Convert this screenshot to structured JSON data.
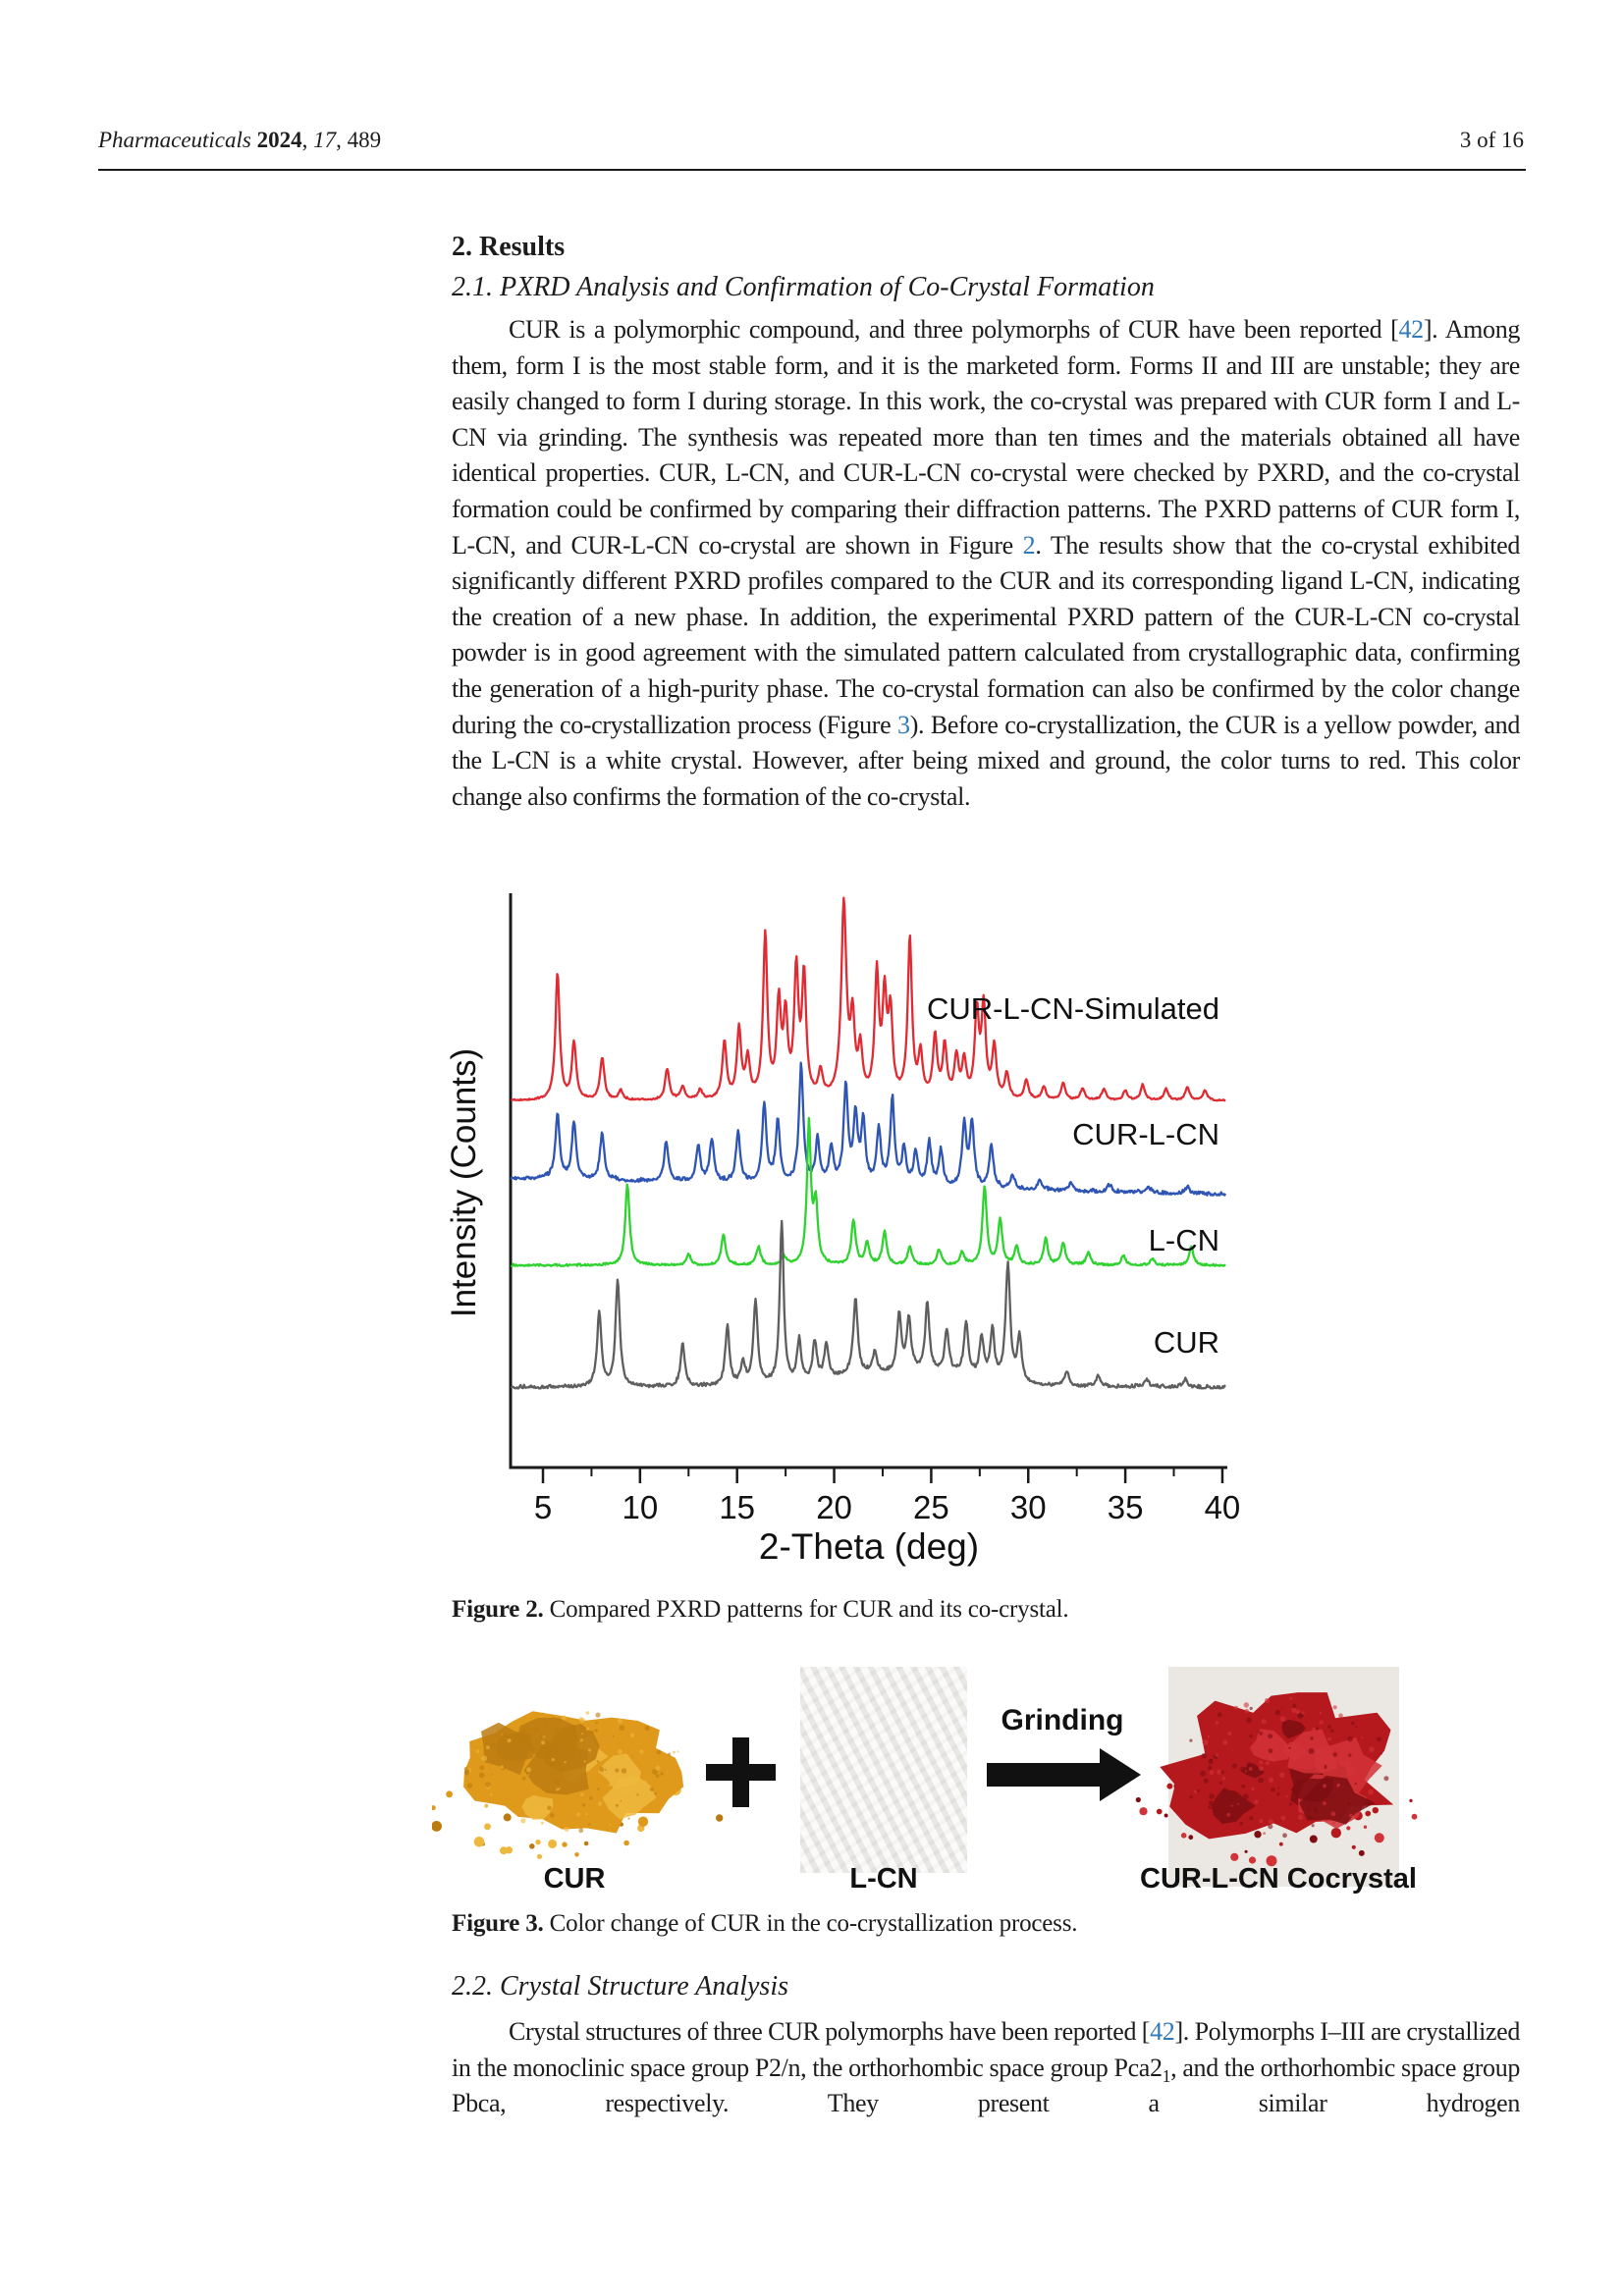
{
  "header": {
    "citation_segments": [
      {
        "t": "Pharmaceuticals",
        "style": "i"
      },
      {
        "t": " "
      },
      {
        "t": "2024",
        "style": "b"
      },
      {
        "t": ", "
      },
      {
        "t": "17",
        "style": "i"
      },
      {
        "t": ", 489"
      }
    ],
    "page_indicator": "3 of 16"
  },
  "sections": {
    "results_heading": "2. Results",
    "s21_heading": "2.1. PXRD Analysis and Confirmation of Co-Crystal Formation",
    "p1_segments": [
      {
        "t": "CUR is a polymorphic compound, and three polymorphs of CUR have been reported ["
      },
      {
        "t": "42",
        "link": true,
        "name": "ref-42-link"
      },
      {
        "t": "]. Among them, form I is the most stable form, and it is the marketed form. Forms II and III are unstable; they are easily changed to form I during storage. In this work, the co-crystal was prepared with CUR form I and L-CN via grinding. The synthesis was repeated more than ten times and the materials obtained all have identical properties. CUR, L-CN, and CUR-L-CN co-crystal were checked by PXRD, and the co-crystal formation could be confirmed by comparing their diffraction patterns. The PXRD patterns of CUR form I, L-CN, and CUR-L-CN co-crystal are shown in Figure "
      },
      {
        "t": "2",
        "link": true,
        "name": "figure-2-ref-link"
      },
      {
        "t": ". The results show that the co-crystal exhibited significantly different PXRD profiles compared to the CUR and its corresponding ligand L-CN, indicating the creation of a new phase. In addition, the experimental PXRD pattern of the CUR-L-CN co-crystal powder is in good agreement with the simulated pattern calculated from crystallographic data, confirming the generation of a high-purity phase. The co-crystal formation can also be confirmed by the color change during the co-crystallization process (Figure "
      },
      {
        "t": "3",
        "link": true,
        "name": "figure-3-ref-link"
      },
      {
        "t": "). Before co-crystallization, the CUR is a yellow powder, and the L-CN is a white crystal. However, after being mixed and ground, the color turns to red. This color change also confirms the formation of the co-crystal."
      }
    ],
    "s22_heading": "2.2. Crystal Structure Analysis",
    "p2_segments": [
      {
        "t": "Crystal structures of three CUR polymorphs have been reported ["
      },
      {
        "t": "42",
        "link": true,
        "name": "ref-42-link-2"
      },
      {
        "t": "]. Polymorphs I–III are crystallized in the monoclinic space group P2/n, the orthorhombic space group Pca2"
      },
      {
        "t": "1",
        "style": "sub"
      },
      {
        "t": ", and the orthorhombic space group Pbca, respectively. They present a similar hydrogen"
      }
    ]
  },
  "figure2": {
    "caption_label": "Figure 2.",
    "caption_text": " Compared PXRD patterns for CUR and its co-crystal."
  },
  "figure3": {
    "caption_label": "Figure 3.",
    "caption_text": " Color change of CUR in the co-crystallization process.",
    "plus_symbol": "+",
    "arrow_label": "Grinding",
    "items": [
      {
        "label": "CUR",
        "type": "yellow-powder",
        "palette": {
          "base": "#df9a1b",
          "dark": "#bc7b0f",
          "light": "#eeb83e"
        }
      },
      {
        "label": "L-CN",
        "type": "white-crystal",
        "palette": {
          "base": "#f2f1ef",
          "dark": "#dddbd6",
          "light": "#fbfbfa"
        }
      },
      {
        "label": "CUR-L-CN Cocrystal",
        "type": "red-powder",
        "palette": {
          "base": "#b5181d",
          "dark": "#7e0e12",
          "light": "#d23338"
        }
      }
    ]
  },
  "chart_data": {
    "type": "line",
    "title": "",
    "xlabel": "2-Theta (deg)",
    "ylabel": "Intensity (Counts)",
    "xlim": [
      3.35,
      40.2
    ],
    "x_ticks": [
      5,
      10,
      15,
      20,
      25,
      30,
      35,
      40
    ],
    "x_minor_tick_step": 2.5,
    "ylim_note": "arbitrary stacked intensity, no y ticks",
    "grid": false,
    "legend_position": "labels-right-of-each-trace",
    "series": [
      {
        "name": "CUR-L-CN-Simulated",
        "color": "#e02b33",
        "peaks": [
          [
            5.75,
            0.66
          ],
          [
            6.6,
            0.3
          ],
          [
            8.05,
            0.22
          ],
          [
            9.0,
            0.05
          ],
          [
            11.4,
            0.16
          ],
          [
            12.2,
            0.07
          ],
          [
            13.1,
            0.05
          ],
          [
            14.35,
            0.3
          ],
          [
            15.1,
            0.36
          ],
          [
            15.55,
            0.2
          ],
          [
            16.45,
            0.85
          ],
          [
            17.15,
            0.48
          ],
          [
            17.5,
            0.4
          ],
          [
            18.05,
            0.65
          ],
          [
            18.45,
            0.62
          ],
          [
            19.3,
            0.13
          ],
          [
            20.5,
            1.0,
            0.16
          ],
          [
            20.95,
            0.38
          ],
          [
            21.35,
            0.24
          ],
          [
            22.2,
            0.63
          ],
          [
            22.6,
            0.5
          ],
          [
            22.9,
            0.42
          ],
          [
            23.9,
            0.83
          ],
          [
            24.45,
            0.22
          ],
          [
            25.2,
            0.32
          ],
          [
            25.7,
            0.27
          ],
          [
            26.3,
            0.21
          ],
          [
            26.7,
            0.19
          ],
          [
            27.35,
            0.44
          ],
          [
            27.7,
            0.47
          ],
          [
            28.25,
            0.27
          ],
          [
            28.9,
            0.13
          ],
          [
            29.9,
            0.1
          ],
          [
            30.8,
            0.07
          ],
          [
            31.8,
            0.09
          ],
          [
            32.8,
            0.06
          ],
          [
            33.9,
            0.06
          ],
          [
            35.0,
            0.05
          ],
          [
            35.9,
            0.08
          ],
          [
            37.1,
            0.06
          ],
          [
            38.2,
            0.07
          ],
          [
            39.1,
            0.05
          ]
        ]
      },
      {
        "name": "CUR-L-CN",
        "color": "#2f55b4",
        "peaks": [
          [
            5.75,
            0.55
          ],
          [
            6.6,
            0.48
          ],
          [
            8.05,
            0.4
          ],
          [
            11.35,
            0.34
          ],
          [
            13.0,
            0.3
          ],
          [
            13.7,
            0.36
          ],
          [
            15.05,
            0.42
          ],
          [
            16.4,
            0.66
          ],
          [
            17.1,
            0.52
          ],
          [
            18.3,
            1.0
          ],
          [
            19.15,
            0.36
          ],
          [
            19.85,
            0.3
          ],
          [
            20.6,
            0.8
          ],
          [
            21.1,
            0.56
          ],
          [
            21.5,
            0.5
          ],
          [
            22.3,
            0.46
          ],
          [
            23.0,
            0.72
          ],
          [
            23.6,
            0.3
          ],
          [
            24.2,
            0.28
          ],
          [
            24.9,
            0.36
          ],
          [
            25.5,
            0.3
          ],
          [
            26.7,
            0.52
          ],
          [
            27.1,
            0.54
          ],
          [
            28.1,
            0.36
          ],
          [
            29.2,
            0.12
          ],
          [
            30.6,
            0.09
          ],
          [
            32.2,
            0.07
          ],
          [
            34.2,
            0.06
          ],
          [
            36.2,
            0.05
          ],
          [
            38.2,
            0.06
          ]
        ]
      },
      {
        "name": "L-CN",
        "color": "#2fd32f",
        "peaks": [
          [
            9.35,
            0.58
          ],
          [
            12.5,
            0.08
          ],
          [
            14.3,
            0.22
          ],
          [
            16.1,
            0.13
          ],
          [
            17.4,
            0.06
          ],
          [
            18.7,
            1.0,
            0.12
          ],
          [
            19.05,
            0.42
          ],
          [
            21.0,
            0.32
          ],
          [
            21.7,
            0.16
          ],
          [
            22.6,
            0.24
          ],
          [
            23.9,
            0.13
          ],
          [
            25.4,
            0.11
          ],
          [
            26.6,
            0.09
          ],
          [
            27.75,
            0.56
          ],
          [
            28.55,
            0.32
          ],
          [
            29.4,
            0.13
          ],
          [
            30.9,
            0.19
          ],
          [
            31.8,
            0.16
          ],
          [
            33.1,
            0.09
          ],
          [
            34.9,
            0.07
          ],
          [
            36.4,
            0.05
          ],
          [
            38.4,
            0.13
          ]
        ]
      },
      {
        "name": "CUR",
        "color": "#5e5e5e",
        "peaks": [
          [
            7.9,
            0.46
          ],
          [
            8.85,
            0.66
          ],
          [
            12.2,
            0.26
          ],
          [
            14.5,
            0.36
          ],
          [
            15.3,
            0.14
          ],
          [
            15.95,
            0.52
          ],
          [
            17.3,
            1.0,
            0.12
          ],
          [
            18.2,
            0.26
          ],
          [
            19.0,
            0.24
          ],
          [
            19.6,
            0.22
          ],
          [
            21.1,
            0.46
          ],
          [
            22.1,
            0.14
          ],
          [
            23.35,
            0.36
          ],
          [
            23.85,
            0.32
          ],
          [
            24.8,
            0.42
          ],
          [
            25.8,
            0.26
          ],
          [
            26.8,
            0.32
          ],
          [
            27.6,
            0.24
          ],
          [
            28.15,
            0.3
          ],
          [
            28.95,
            0.72,
            0.14
          ],
          [
            29.55,
            0.28
          ],
          [
            21.0,
            0.06,
            1.5
          ],
          [
            24.0,
            0.07,
            1.8
          ],
          [
            26.5,
            0.05,
            1.6
          ],
          [
            32.0,
            0.09
          ],
          [
            33.6,
            0.07
          ],
          [
            36.1,
            0.05
          ],
          [
            38.1,
            0.05
          ]
        ]
      }
    ]
  }
}
